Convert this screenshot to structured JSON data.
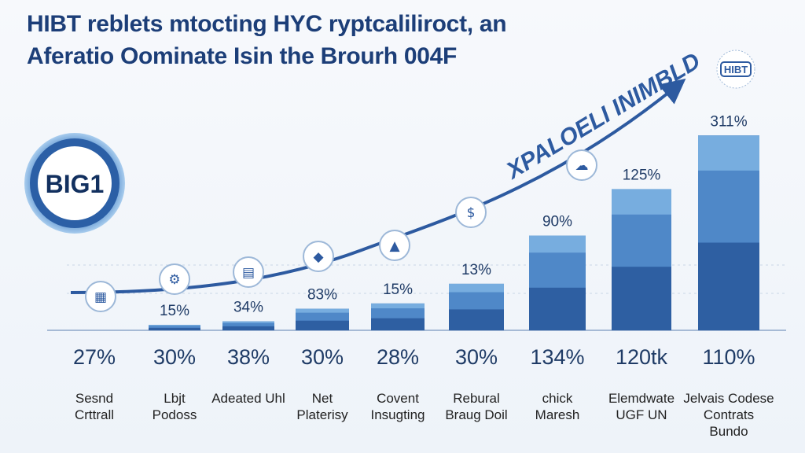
{
  "title_lines": [
    "HIBT reblets mtocting HYC ryptcaliliroct, an",
    "Aferatio Oominate Isin the Brourh 004F"
  ],
  "badge_text": "BIG1",
  "logo_text": "HIBT",
  "arrow_text": "XPALOELI INIMBLD",
  "colors": {
    "title": "#1c3e78",
    "bar_dark": "#2e5fa2",
    "bar_mid": "#4f88c8",
    "bar_light": "#77addf",
    "arrow": "#2d5aa0",
    "label": "#1f3b66"
  },
  "icons": [
    "building-icon",
    "gear-icon",
    "chart-icon",
    "shield-icon",
    "rocket-icon",
    "dollar-icon",
    "cloud-icon"
  ],
  "chart_data": {
    "type": "bar",
    "title": "HIBT reblets mtocting HYC ryptcaliliroct, an Aferatio Oominate Isin the Brourh 004F",
    "categories": [
      [
        "Sesnd",
        "Crttrall"
      ],
      [
        "Lbjt",
        "Podoss"
      ],
      [
        "Adeated Uhl"
      ],
      [
        "Net",
        "Platerisy"
      ],
      [
        "Covent",
        "Insugting"
      ],
      [
        "Rebural",
        "Braug Doil"
      ],
      [
        "chick",
        "Maresh"
      ],
      [
        "Elemdwate",
        "UGF UN"
      ],
      [
        "Jelvais Codese",
        "Contrats",
        "Bundo"
      ]
    ],
    "values": [
      0,
      3,
      5,
      12,
      15,
      26,
      53,
      79,
      109
    ],
    "top_labels": [
      "",
      "15%",
      "34%",
      "83%",
      "15%",
      "13%",
      "90%",
      "125%",
      "311%"
    ],
    "bottom_labels": [
      "27%",
      "30%",
      "38%",
      "30%",
      "28%",
      "30%",
      "134%",
      "120tk",
      "110%"
    ],
    "grid": true,
    "legend": "none"
  }
}
